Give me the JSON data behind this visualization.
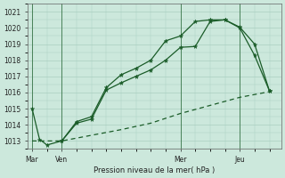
{
  "title": "Pression niveau de la mer( hPa )",
  "bg_color": "#cce8dc",
  "grid_color": "#aacfc0",
  "line_color": "#1a5c28",
  "ylim": [
    1012.5,
    1021.5
  ],
  "yticks": [
    1013,
    1014,
    1015,
    1016,
    1017,
    1018,
    1019,
    1020,
    1021
  ],
  "xtick_labels": [
    "Mar",
    "Ven",
    "Mer",
    "Jeu"
  ],
  "xtick_positions": [
    0,
    2,
    10,
    14
  ],
  "line1_x": [
    0,
    0.5,
    1,
    2,
    3,
    4,
    5,
    6,
    7,
    8,
    9,
    10,
    11,
    12,
    13,
    14,
    15,
    16
  ],
  "line1_y": [
    1015.0,
    1013.1,
    1012.75,
    1013.0,
    1014.1,
    1014.35,
    1016.15,
    1016.6,
    1017.0,
    1017.4,
    1018.0,
    1018.8,
    1018.85,
    1020.4,
    1020.5,
    1020.05,
    1019.0,
    1016.1
  ],
  "line2_x": [
    2,
    3,
    4,
    5,
    6,
    7,
    8,
    9,
    10,
    11,
    12,
    13,
    14,
    15,
    16
  ],
  "line2_y": [
    1013.0,
    1014.2,
    1014.5,
    1016.3,
    1017.1,
    1017.5,
    1018.0,
    1019.2,
    1019.5,
    1020.4,
    1020.5,
    1020.5,
    1020.0,
    1018.3,
    1016.1
  ],
  "line3_x": [
    0,
    2,
    4,
    6,
    8,
    10,
    12,
    14,
    16
  ],
  "line3_y": [
    1013.0,
    1013.0,
    1013.35,
    1013.7,
    1014.1,
    1014.7,
    1015.2,
    1015.7,
    1016.05
  ]
}
